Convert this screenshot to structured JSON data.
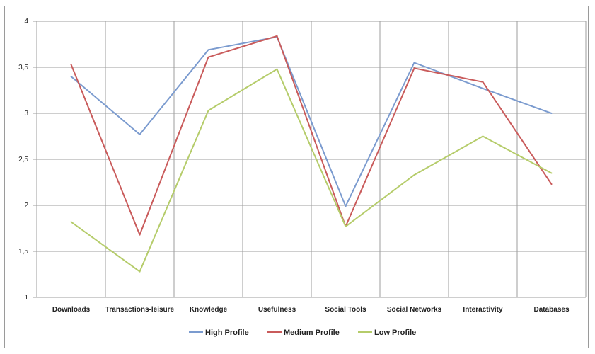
{
  "chart_data": {
    "type": "line",
    "title": "",
    "xlabel": "",
    "ylabel": "",
    "categories": [
      "Downloads",
      "Transactions-leisure",
      "Knowledge",
      "Usefulness",
      "Social Tools",
      "Social Networks",
      "Interactivity",
      "Databases"
    ],
    "ylim": [
      1,
      4
    ],
    "yticks": [
      1,
      1.5,
      2,
      2.5,
      3,
      3.5,
      4
    ],
    "ytick_labels": [
      "1",
      "1,5",
      "2",
      "2,5",
      "3",
      "3,5",
      "4"
    ],
    "grid": true,
    "legend_position": "bottom",
    "series": [
      {
        "name": "High Profile",
        "color": "#7b9bcf",
        "values": [
          3.4,
          2.77,
          3.69,
          3.83,
          1.99,
          3.55,
          3.27,
          3.0
        ]
      },
      {
        "name": "Medium Profile",
        "color": "#c95b5b",
        "values": [
          3.53,
          1.68,
          3.61,
          3.84,
          1.77,
          3.49,
          3.34,
          2.23
        ]
      },
      {
        "name": "Low Profile",
        "color": "#b5cc6a",
        "values": [
          1.82,
          1.28,
          3.03,
          3.48,
          1.77,
          2.33,
          2.75,
          2.35
        ]
      }
    ]
  }
}
